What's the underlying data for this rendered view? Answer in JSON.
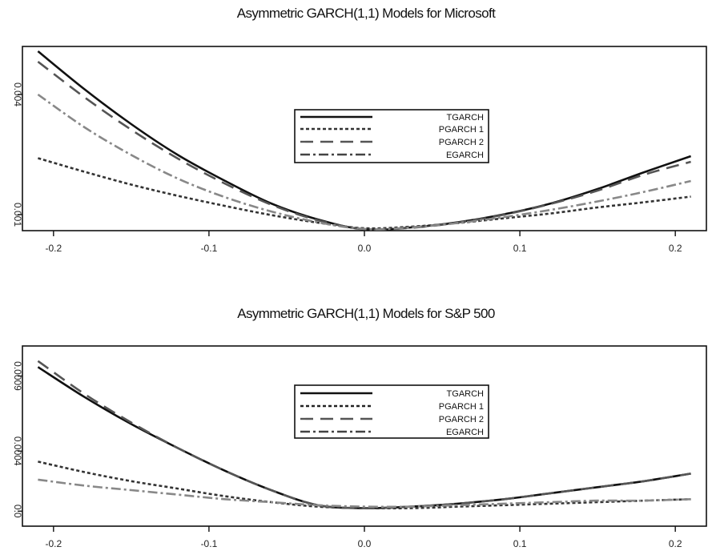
{
  "chart_data": [
    {
      "type": "line",
      "title": "Asymmetric GARCH(1,1) Models for Microsoft",
      "xlabel": "",
      "ylabel": "",
      "xlim": [
        -0.22,
        0.22
      ],
      "ylim": [
        0.0006,
        0.0052
      ],
      "x_ticks": [
        -0.2,
        -0.1,
        0.0,
        0.1,
        0.2
      ],
      "x_tick_labels": [
        "-0.2",
        "-0.1",
        "0.0",
        "0.1",
        "0.2"
      ],
      "y_ticks": [
        0.001,
        0.004
      ],
      "y_tick_labels": [
        "0.001",
        "0.004"
      ],
      "grid": false,
      "legend": "center",
      "x": [
        -0.21,
        -0.18,
        -0.15,
        -0.12,
        -0.09,
        -0.06,
        -0.03,
        0.0,
        0.03,
        0.06,
        0.09,
        0.12,
        0.15,
        0.18,
        0.21
      ],
      "series": [
        {
          "name": "TGARCH",
          "style": "solid",
          "color": "#111111",
          "values": [
            0.00508,
            0.00413,
            0.00326,
            0.00249,
            0.00185,
            0.00128,
            0.00088,
            0.00063,
            0.00068,
            0.00081,
            0.00101,
            0.00128,
            0.00164,
            0.00206,
            0.00246
          ]
        },
        {
          "name": "PGARCH 1",
          "style": "dotted",
          "color": "#333333",
          "values": [
            0.00241,
            0.00207,
            0.00175,
            0.00147,
            0.00122,
            0.00099,
            0.0008,
            0.00066,
            0.0007,
            0.00079,
            0.00091,
            0.00103,
            0.00118,
            0.00131,
            0.00145
          ]
        },
        {
          "name": "PGARCH 2",
          "style": "long-dash",
          "color": "#555555",
          "values": [
            0.00482,
            0.00393,
            0.00312,
            0.0024,
            0.00178,
            0.00125,
            0.00086,
            0.00064,
            0.00067,
            0.0008,
            0.001,
            0.00127,
            0.0016,
            0.002,
            0.00232
          ]
        },
        {
          "name": "EGARCH",
          "style": "dash-dot",
          "color": "#888888",
          "values": [
            0.004,
            0.00318,
            0.00249,
            0.0019,
            0.00144,
            0.00108,
            0.00081,
            0.00064,
            0.00068,
            0.00079,
            0.00094,
            0.00112,
            0.00133,
            0.00157,
            0.00184
          ]
        }
      ]
    },
    {
      "type": "line",
      "title": "Asymmetric GARCH(1,1) Models for S&P 500",
      "xlabel": "",
      "ylabel": "",
      "xlim": [
        -0.22,
        0.22
      ],
      "ylim": [
        -0.0001,
        0.0011
      ],
      "x_ticks": [
        -0.2,
        -0.1,
        0.0,
        0.1,
        0.2
      ],
      "x_tick_labels": [
        "-0.2",
        "-0.1",
        "0.0",
        "0.1",
        "0.2"
      ],
      "y_ticks": [
        0.0,
        0.0004,
        0.0009
      ],
      "y_tick_labels": [
        "0.0",
        "0.0004",
        "0.0009"
      ],
      "grid": false,
      "legend": "center",
      "x": [
        -0.21,
        -0.18,
        -0.15,
        -0.12,
        -0.09,
        -0.06,
        -0.03,
        0.0,
        0.03,
        0.06,
        0.09,
        0.12,
        0.15,
        0.18,
        0.21
      ],
      "series": [
        {
          "name": "TGARCH",
          "style": "solid",
          "color": "#111111",
          "values": [
            0.00096,
            0.00076,
            0.00058,
            0.00042,
            0.00027,
            0.00014,
            4e-05,
            2e-05,
            3e-05,
            5e-05,
            8e-05,
            0.00012,
            0.00016,
            0.0002,
            0.00025
          ]
        },
        {
          "name": "PGARCH 1",
          "style": "dotted",
          "color": "#333333",
          "values": [
            0.00033,
            0.00026,
            0.0002,
            0.00015,
            0.0001,
            6e-05,
            3e-05,
            2e-05,
            2e-05,
            3e-05,
            4e-05,
            5e-05,
            6e-05,
            7e-05,
            8e-05
          ]
        },
        {
          "name": "PGARCH 2",
          "style": "long-dash",
          "color": "#555555",
          "values": [
            0.001,
            0.00078,
            0.00059,
            0.00042,
            0.00027,
            0.00014,
            4e-05,
            2e-05,
            3e-05,
            5e-05,
            8e-05,
            0.00012,
            0.00016,
            0.0002,
            0.00025
          ]
        },
        {
          "name": "EGARCH",
          "style": "dash-dot",
          "color": "#888888",
          "values": [
            0.00021,
            0.00017,
            0.00014,
            0.00011,
            8e-05,
            6e-05,
            4e-05,
            3e-05,
            3e-05,
            4e-05,
            5e-05,
            6e-05,
            7e-05,
            7e-05,
            8e-05
          ]
        }
      ]
    }
  ]
}
